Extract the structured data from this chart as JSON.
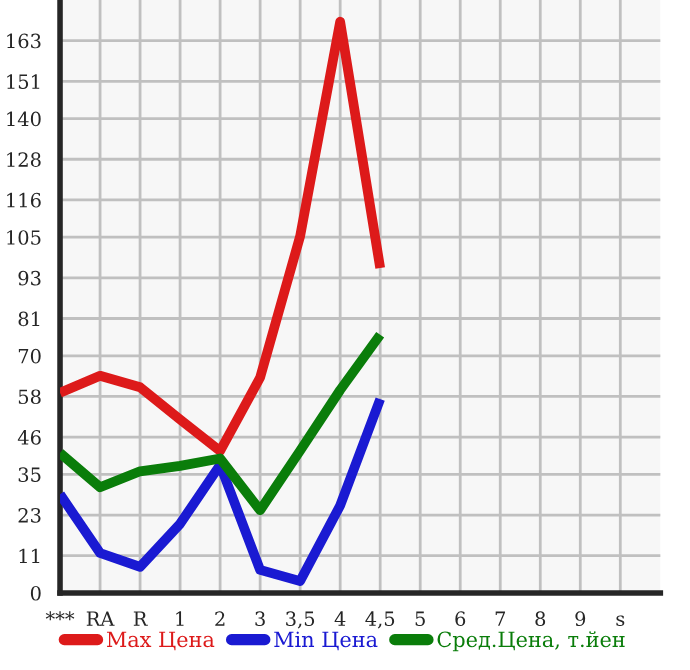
{
  "chart_data": {
    "type": "line",
    "categories": [
      "***",
      "RA",
      "R",
      "1",
      "2",
      "3",
      "3,5",
      "4",
      "4,5",
      "5",
      "6",
      "7",
      "8",
      "9",
      "s"
    ],
    "series": [
      {
        "name": "Max Цена",
        "color": "#dd1a1a",
        "values": [
          59.1,
          64.1,
          60.7,
          51.2,
          41.9,
          63.6,
          105.3,
          168.6,
          95.9,
          null,
          null,
          null,
          null,
          null,
          null
        ]
      },
      {
        "name": "Min Цена",
        "color": "#1a1ad2",
        "values": [
          29.1,
          11.8,
          7.7,
          20.4,
          37.8,
          6.8,
          3.5,
          25.8,
          57.2,
          null,
          null,
          null,
          null,
          null,
          null
        ]
      },
      {
        "name": "Сред.Цена, т.йен",
        "color": "#0a7d0a",
        "values": [
          41.3,
          31.2,
          35.9,
          37.5,
          39.7,
          24.4,
          42,
          59.9,
          76.2,
          null,
          null,
          null,
          null,
          null,
          null
        ]
      }
    ],
    "ylim": [
      0,
      175
    ],
    "yticks": [
      0,
      11,
      23,
      35,
      46,
      58,
      70,
      81,
      93,
      105,
      116,
      128,
      140,
      151,
      163
    ],
    "grid": true,
    "legend": "bottom",
    "marker": "none",
    "line_style": "solid"
  }
}
